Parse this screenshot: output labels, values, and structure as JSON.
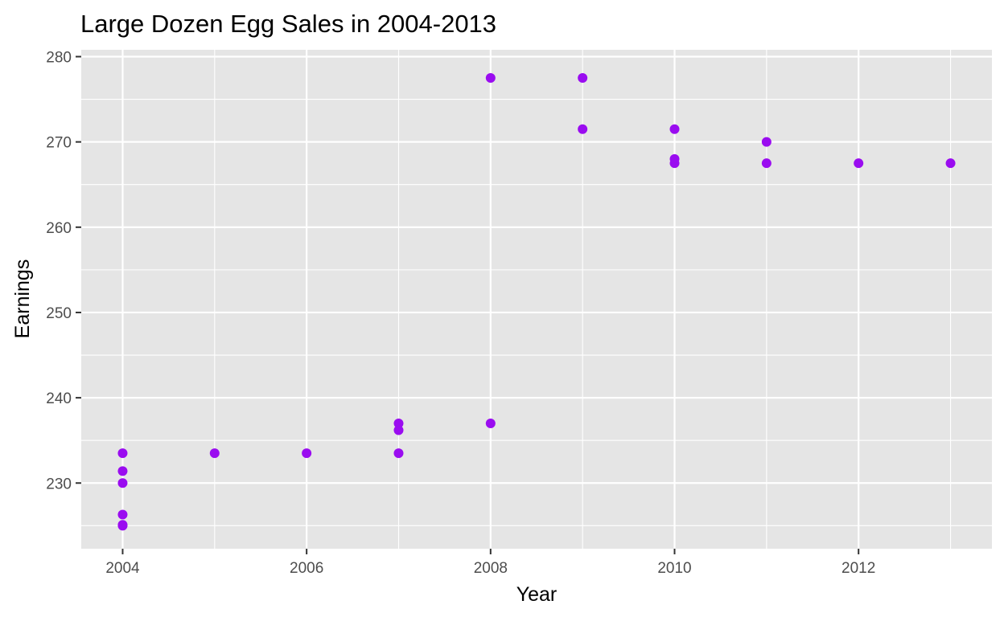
{
  "chart_data": {
    "type": "scatter",
    "title": "Large Dozen Egg Sales in 2004-2013",
    "xlabel": "Year",
    "ylabel": "Earnings",
    "x_ticks": [
      2004,
      2006,
      2008,
      2010,
      2012
    ],
    "y_ticks": [
      230,
      240,
      250,
      260,
      270,
      280
    ],
    "xlim": [
      2003.55,
      2013.45
    ],
    "ylim": [
      222.3,
      280.8
    ],
    "grid": true,
    "legend": "none",
    "colors": {
      "point": "#9a0cf0",
      "panel": "#e5e5e5",
      "grid_major": "#ffffff"
    },
    "series": [
      {
        "x": [
          2004,
          2004,
          2004,
          2004,
          2004,
          2004,
          2005,
          2006,
          2007,
          2007,
          2007,
          2008,
          2008,
          2009,
          2009,
          2010,
          2010,
          2010,
          2011,
          2011,
          2012,
          2013
        ],
        "y": [
          233.5,
          231.4,
          230.0,
          226.3,
          225.1,
          225.0,
          233.5,
          233.5,
          237.0,
          236.2,
          233.5,
          277.5,
          237.0,
          277.5,
          271.5,
          271.5,
          268.0,
          267.5,
          270.0,
          267.5,
          267.5,
          267.5
        ]
      }
    ]
  }
}
